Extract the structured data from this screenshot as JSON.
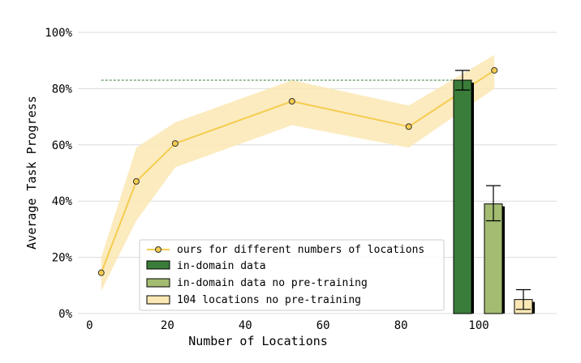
{
  "chart_data": {
    "type": "line",
    "xlabel": "Number of Locations",
    "ylabel": "Average Task Progress",
    "x_ticks": [
      0,
      20,
      40,
      60,
      80,
      100
    ],
    "y_ticks": [
      0,
      20,
      40,
      60,
      80,
      100
    ],
    "y_tick_labels": [
      "0%",
      "20%",
      "40%",
      "60%",
      "80%",
      "100%"
    ],
    "xlim": [
      -3,
      120
    ],
    "ylim": [
      0,
      100
    ],
    "grid": "horizontal",
    "legend_position": "bottom-center",
    "line_series": {
      "name": "ours for different numbers of locations",
      "color": "#f5cc4f",
      "band_color": "#fbe8b4",
      "x": [
        3,
        12,
        22,
        52,
        82,
        104
      ],
      "y": [
        14.5,
        47,
        60.5,
        75.5,
        66.5,
        86.5
      ],
      "upper": [
        20,
        59,
        68,
        83,
        74,
        92
      ],
      "lower": [
        8,
        33,
        52,
        67,
        59,
        80
      ]
    },
    "reference_line": {
      "y": 83,
      "color": "#3a7d3a"
    },
    "bars": [
      {
        "name": "in-domain data",
        "value": 83,
        "error_low": 79.5,
        "error_high": 86.5,
        "color": "#3a7d3a"
      },
      {
        "name": "in-domain data no pre-training",
        "value": 39,
        "error_low": 33,
        "error_high": 45.5,
        "color": "#a3bc72"
      },
      {
        "name": "104 locations no pre-training",
        "value": 5,
        "error_low": 1.5,
        "error_high": 8.5,
        "color": "#fbe8b4"
      }
    ]
  }
}
